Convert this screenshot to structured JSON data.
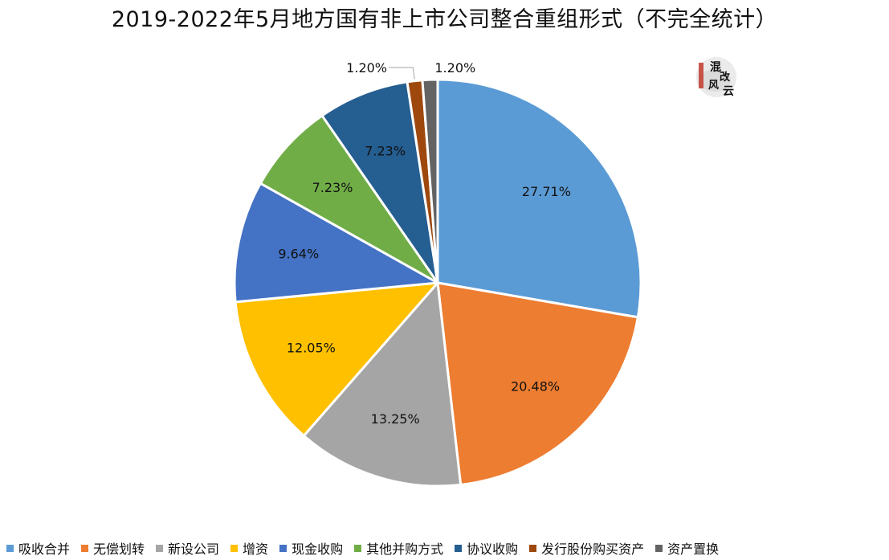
{
  "chart_data": {
    "type": "pie",
    "title": "2019-2022年5月地方国有非上市公司整合重组形式（不完全统计）",
    "unit": "%",
    "slices": [
      {
        "label": "吸收合并",
        "value": 27.71,
        "display": "27.71%",
        "color": "#5B9BD5"
      },
      {
        "label": "无偿划转",
        "value": 20.48,
        "display": "20.48%",
        "color": "#ED7D31"
      },
      {
        "label": "新设公司",
        "value": 13.25,
        "display": "13.25%",
        "color": "#A5A5A5"
      },
      {
        "label": "增资",
        "value": 12.05,
        "display": "12.05%",
        "color": "#FFC000"
      },
      {
        "label": "现金收购",
        "value": 9.64,
        "display": "9.64%",
        "color": "#4472C4"
      },
      {
        "label": "其他并购方式",
        "value": 7.23,
        "display": "7.23%",
        "color": "#70AD47"
      },
      {
        "label": "协议收购",
        "value": 7.23,
        "display": "7.23%",
        "color": "#255E91"
      },
      {
        "label": "发行股份购买资产",
        "value": 1.2,
        "display": "1.20%",
        "color": "#9E480E"
      },
      {
        "label": "资产置换",
        "value": 1.2,
        "display": "1.20%",
        "color": "#636363"
      }
    ],
    "legend_position": "bottom",
    "start_angle": "12 o'clock",
    "direction": "clockwise"
  },
  "watermark": {
    "text": "混改风云"
  }
}
